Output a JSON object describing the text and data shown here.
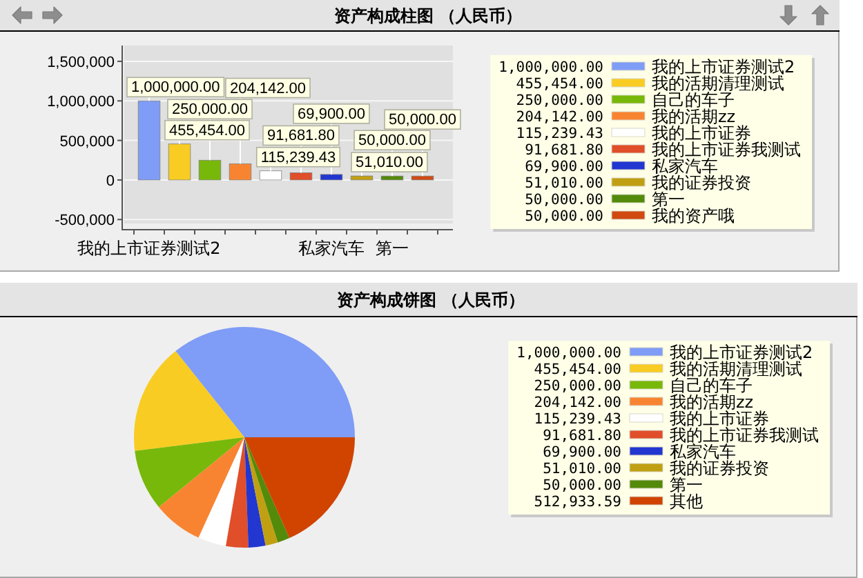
{
  "chart_data": [
    {
      "type": "bar",
      "title": "资产构成柱图 （人民币）",
      "categories": [
        "我的上市证券测试2",
        null,
        null,
        null,
        null,
        null,
        "私家汽车",
        null,
        "第一",
        null
      ],
      "stacked": true,
      "ylim": [
        -550000,
        1700000
      ],
      "yticks": [
        {
          "value": -500000,
          "label": "-500,000"
        },
        0,
        {
          "value": 500000,
          "label": "500,000"
        },
        {
          "value": 1000000,
          "label": "1,000,000"
        },
        {
          "value": 1500000,
          "label": "1,500,000"
        }
      ],
      "grid": "y",
      "legend": "right",
      "series": [
        {
          "name": "我的上市证券测试2",
          "color": "#7f9cf6",
          "values": [
            1000000,
            null,
            null,
            null,
            null,
            null,
            null,
            null,
            null,
            null
          ],
          "value_labels": [
            "1,000,000.00",
            null,
            null,
            null,
            null,
            null,
            null,
            null,
            null,
            null
          ]
        },
        {
          "name": "我的活期清理测试",
          "color": "#f8cc22",
          "values": [
            null,
            455454,
            null,
            null,
            null,
            null,
            null,
            null,
            null,
            null
          ],
          "value_labels": [
            null,
            "455,454.00",
            null,
            null,
            null,
            null,
            null,
            null,
            null,
            null
          ]
        },
        {
          "name": "自己的车子",
          "color": "#78b80a",
          "values": [
            null,
            null,
            250000,
            null,
            null,
            null,
            null,
            null,
            null,
            null
          ],
          "value_labels": [
            null,
            null,
            "250,000.00",
            null,
            null,
            null,
            null,
            null,
            null,
            null
          ]
        },
        {
          "name": "我的活期zz",
          "color": "#f88432",
          "values": [
            null,
            null,
            null,
            204142,
            null,
            null,
            null,
            null,
            null,
            null
          ],
          "value_labels": [
            null,
            null,
            null,
            "204,142.00",
            null,
            null,
            null,
            null,
            null,
            null
          ]
        },
        {
          "name": "我的上市证券",
          "color": "#ffffff",
          "values": [
            null,
            null,
            null,
            null,
            115239.43,
            null,
            null,
            null,
            null,
            null
          ],
          "value_labels": [
            null,
            null,
            null,
            null,
            "115,239.43",
            null,
            null,
            null,
            null,
            null
          ]
        },
        {
          "name": "我的上市证券我测试",
          "color": "#e04e2a",
          "values": [
            null,
            null,
            null,
            null,
            null,
            91681.8,
            null,
            null,
            null,
            null
          ],
          "value_labels": [
            null,
            null,
            null,
            null,
            null,
            "91,681.80",
            null,
            null,
            null,
            null
          ]
        },
        {
          "name": "私家汽车",
          "color": "#2236d0",
          "values": [
            null,
            null,
            null,
            null,
            null,
            null,
            69900,
            null,
            null,
            null
          ],
          "value_labels": [
            null,
            null,
            null,
            null,
            null,
            null,
            "69,900.00",
            null,
            null,
            null
          ]
        },
        {
          "name": "我的证券投资",
          "color": "#c0a012",
          "values": [
            null,
            null,
            null,
            null,
            null,
            null,
            null,
            51010,
            null,
            null
          ],
          "value_labels": [
            null,
            null,
            null,
            null,
            null,
            null,
            null,
            "51,010.00",
            null,
            null
          ]
        },
        {
          "name": "第一",
          "color": "#548a0a",
          "values": [
            null,
            null,
            null,
            null,
            null,
            null,
            null,
            null,
            50000,
            null
          ],
          "value_labels": [
            null,
            null,
            null,
            null,
            null,
            null,
            null,
            null,
            "50,000.00",
            null
          ]
        },
        {
          "name": "我的资产哦",
          "color": "#d04a12",
          "values": [
            null,
            null,
            null,
            null,
            null,
            null,
            null,
            null,
            null,
            50000
          ],
          "value_labels": [
            null,
            null,
            null,
            null,
            null,
            null,
            null,
            null,
            null,
            "50,000.00"
          ]
        }
      ]
    },
    {
      "type": "pie",
      "title": "资产构成饼图 （人民币）",
      "legend": "right",
      "categories": [
        "我的上市证券测试2",
        "我的活期清理测试",
        "自己的车子",
        "我的活期zz",
        "我的上市证券",
        "我的上市证券我测试",
        "私家汽车",
        "我的证券投资",
        "第一",
        "其他"
      ],
      "values": [
        1000000,
        455454,
        250000,
        204142,
        115239.43,
        91681.8,
        69900,
        51010,
        50000,
        512933.59
      ],
      "value_labels": [
        "1,000,000.00",
        "455,454.00",
        "250,000.00",
        "204,142.00",
        "115,239.43",
        "91,681.80",
        "69,900.00",
        "51,010.00",
        "50,000.00",
        "512,933.59"
      ],
      "colors": [
        "#7f9cf6",
        "#f8cc22",
        "#78b80a",
        "#f88432",
        "#ffffff",
        "#e04e2a",
        "#2236d0",
        "#c0a012",
        "#548a0a",
        "#d04400"
      ]
    }
  ]
}
